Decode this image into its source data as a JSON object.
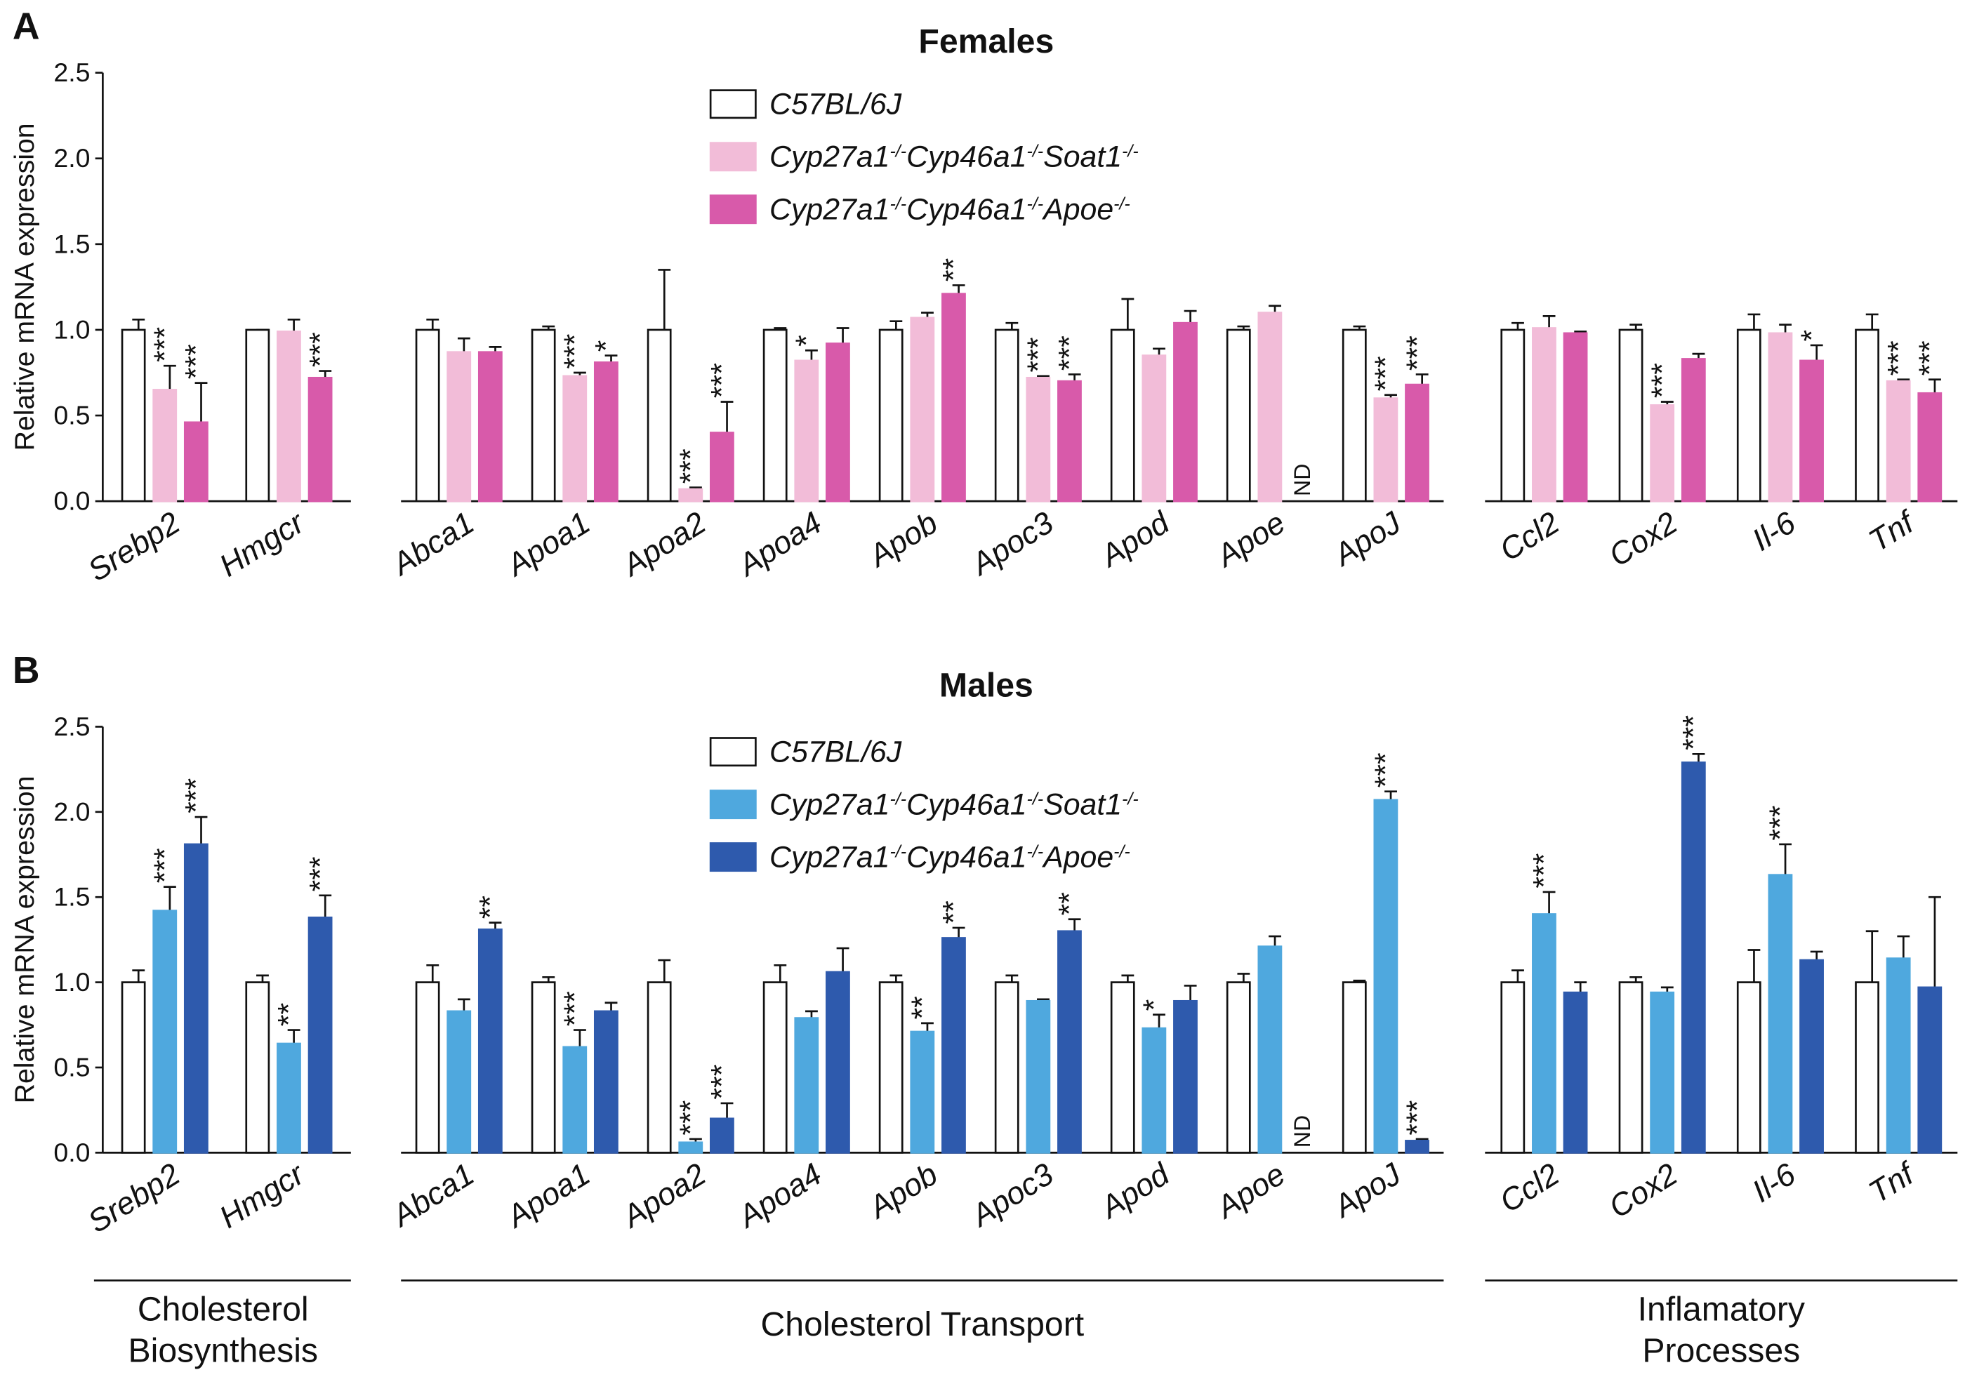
{
  "chart_data": [
    {
      "type": "bar",
      "panel": "A",
      "title": "Females",
      "y_label": "Relative mRNA expression",
      "ylim": [
        0,
        2.5
      ],
      "yticks": [
        {
          "value": 0,
          "label": "0.0"
        },
        0.5,
        {
          "value": 1,
          "label": "1.0"
        },
        1.5,
        {
          "value": 2,
          "label": "2.0"
        },
        2.5
      ],
      "groups": [
        {
          "categories": [
            "Srebp2",
            "Hmgcr"
          ]
        },
        {
          "categories": [
            "Abca1",
            "Apoa1",
            "Apoa2",
            "Apoa4",
            "Apob",
            "Apoc3",
            "Apod",
            "Apoe",
            "ApoJ"
          ]
        },
        {
          "categories": [
            "Ccl2",
            "Cox2",
            "Il-6",
            "Tnf"
          ]
        }
      ],
      "series": [
        {
          "name": "C57BL/6J",
          "color": "#ffffff",
          "values": [
            1,
            1,
            1,
            1,
            1,
            1,
            1,
            1,
            1,
            1,
            1,
            1,
            1,
            1,
            1
          ],
          "errors": [
            0.06,
            0.0,
            0.06,
            0.02,
            0.35,
            0.01,
            0.05,
            0.04,
            0.18,
            0.02,
            0.02,
            0.04,
            0.03,
            0.09,
            0.09
          ],
          "significance": [
            null,
            null,
            null,
            null,
            null,
            null,
            null,
            null,
            null,
            null,
            null,
            null,
            null,
            null,
            null
          ]
        },
        {
          "name": "Cyp27a1-/-Cyp46a1-/-Soat1-/-",
          "color": "#f2bcd8",
          "values": [
            0.65,
            0.99,
            0.87,
            0.73,
            0.07,
            0.82,
            1.07,
            0.72,
            0.85,
            1.1,
            0.6,
            1.01,
            0.56,
            0.98,
            0.7
          ],
          "errors": [
            0.14,
            0.07,
            0.08,
            0.02,
            0.01,
            0.06,
            0.03,
            0.01,
            0.04,
            0.04,
            0.02,
            0.07,
            0.02,
            0.05,
            0.01
          ],
          "significance": [
            "***",
            null,
            null,
            "***",
            "***",
            "*",
            null,
            "***",
            null,
            null,
            "***",
            null,
            "***",
            null,
            "***"
          ]
        },
        {
          "name": "Cyp27a1-/-Cyp46a1-/-Apoe-/-",
          "color": "#d85aaa",
          "values": [
            0.46,
            0.72,
            0.87,
            0.81,
            0.4,
            0.92,
            1.21,
            0.7,
            1.04,
            null,
            0.68,
            0.98,
            0.83,
            0.82,
            0.63
          ],
          "errors": [
            0.23,
            0.04,
            0.03,
            0.04,
            0.18,
            0.09,
            0.05,
            0.04,
            0.07,
            null,
            0.06,
            0.01,
            0.03,
            0.09,
            0.08
          ],
          "significance": [
            "***",
            "***",
            null,
            "*",
            "***",
            null,
            "**",
            "***",
            null,
            "ND",
            "***",
            null,
            null,
            "*",
            "***"
          ]
        }
      ]
    },
    {
      "type": "bar",
      "panel": "B",
      "title": "Males",
      "y_label": "Relative mRNA expression",
      "ylim": [
        0,
        2.5
      ],
      "yticks": [
        {
          "value": 0,
          "label": "0.0"
        },
        0.5,
        {
          "value": 1,
          "label": "1.0"
        },
        1.5,
        {
          "value": 2,
          "label": "2.0"
        },
        2.5
      ],
      "groups": [
        {
          "label": [
            "Cholesterol",
            "Biosynthesis"
          ],
          "categories": [
            "Srebp2",
            "Hmgcr"
          ]
        },
        {
          "label": [
            "Cholesterol Transport"
          ],
          "categories": [
            "Abca1",
            "Apoa1",
            "Apoa2",
            "Apoa4",
            "Apob",
            "Apoc3",
            "Apod",
            "Apoe",
            "ApoJ"
          ]
        },
        {
          "label": [
            "Inflamatory",
            "Processes"
          ],
          "categories": [
            "Ccl2",
            "Cox2",
            "Il-6",
            "Tnf"
          ]
        }
      ],
      "series": [
        {
          "name": "C57BL/6J",
          "color": "#ffffff",
          "values": [
            1,
            1,
            1,
            1,
            1,
            1,
            1,
            1,
            1,
            1,
            1,
            1,
            1,
            1,
            1
          ],
          "errors": [
            0.07,
            0.04,
            0.1,
            0.03,
            0.13,
            0.1,
            0.04,
            0.04,
            0.04,
            0.05,
            0.01,
            0.07,
            0.03,
            0.19,
            0.3
          ],
          "significance": [
            null,
            null,
            null,
            null,
            null,
            null,
            null,
            null,
            null,
            null,
            null,
            null,
            null,
            null,
            null
          ]
        },
        {
          "name": "Cyp27a1-/-Cyp46a1-/-Soat1-/-",
          "color": "#4fa8de",
          "values": [
            1.42,
            0.64,
            0.83,
            0.62,
            0.06,
            0.79,
            0.71,
            0.89,
            0.73,
            1.21,
            2.07,
            1.4,
            0.94,
            1.63,
            1.14
          ],
          "errors": [
            0.14,
            0.08,
            0.07,
            0.1,
            0.02,
            0.04,
            0.05,
            0.01,
            0.08,
            0.06,
            0.05,
            0.13,
            0.03,
            0.18,
            0.13
          ],
          "significance": [
            "***",
            "**",
            null,
            "***",
            "***",
            null,
            "**",
            null,
            "*",
            null,
            "***",
            "***",
            null,
            "***",
            null
          ]
        },
        {
          "name": "Cyp27a1-/-Cyp46a1-/-Apoe-/-",
          "color": "#2e5aad",
          "values": [
            1.81,
            1.38,
            1.31,
            0.83,
            0.2,
            1.06,
            1.26,
            1.3,
            0.89,
            null,
            0.07,
            0.94,
            2.29,
            1.13,
            0.97
          ],
          "errors": [
            0.16,
            0.13,
            0.04,
            0.05,
            0.09,
            0.14,
            0.06,
            0.07,
            0.09,
            null,
            0.01,
            0.06,
            0.05,
            0.05,
            0.53
          ],
          "significance": [
            "***",
            "***",
            "**",
            null,
            "***",
            null,
            "**",
            "**",
            null,
            "ND",
            "***",
            null,
            "***",
            null,
            null
          ]
        }
      ]
    }
  ]
}
